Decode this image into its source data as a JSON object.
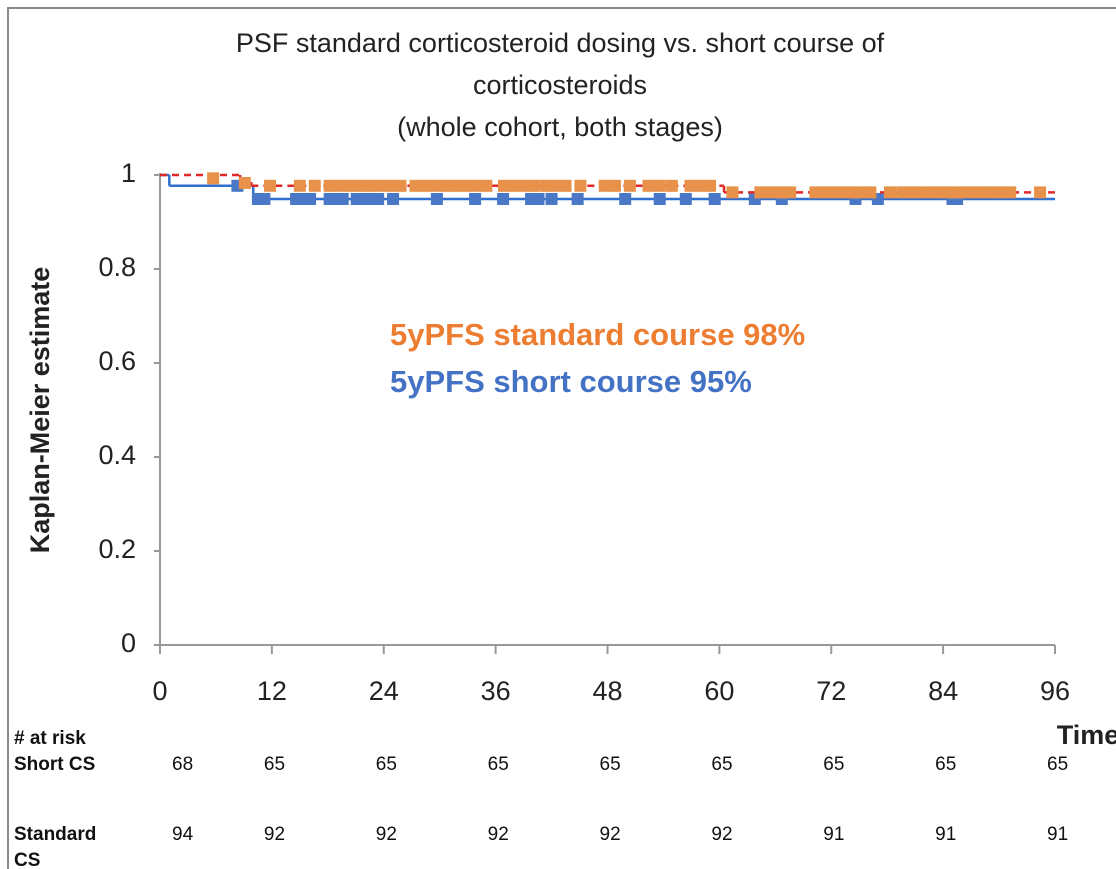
{
  "chart_data": {
    "type": "kaplan-meier",
    "title": [
      "PSF standard corticosteroid dosing vs. short course of",
      "corticosteroids",
      "(whole cohort, both stages)"
    ],
    "y_label": "Kaplan-Meier estimate",
    "x_label": "Time",
    "xlim": [
      0,
      96
    ],
    "xticks": [
      0,
      12,
      24,
      36,
      48,
      60,
      72,
      84,
      96
    ],
    "ylim": [
      0,
      1
    ],
    "yticks": [
      0,
      0.2,
      0.4,
      0.6,
      0.8,
      1
    ],
    "series": [
      {
        "name": "Short CS",
        "color": "#4a78c6",
        "line_color": "#2f6fd0",
        "line_style": "solid",
        "x": [
          0,
          1,
          10,
          96
        ],
        "values": [
          1,
          0.977,
          0.949,
          0.949
        ],
        "censored_x": [
          8.3,
          10.5,
          11.2,
          14.6,
          15.3,
          16.1,
          18.2,
          19.0,
          19.6,
          21.1,
          21.9,
          22.6,
          23.4,
          25.0,
          29.7,
          33.8,
          36.8,
          39.8,
          40.6,
          42.0,
          44.8,
          49.9,
          53.6,
          56.4,
          59.5,
          63.8,
          66.7,
          74.6,
          77.0,
          85.0,
          85.5
        ],
        "censored_values": [
          0.977,
          0.949,
          0.949,
          0.949,
          0.949,
          0.949,
          0.949,
          0.949,
          0.949,
          0.949,
          0.949,
          0.949,
          0.949,
          0.949,
          0.949,
          0.949,
          0.949,
          0.949,
          0.949,
          0.949,
          0.949,
          0.949,
          0.949,
          0.949,
          0.949,
          0.949,
          0.949,
          0.949,
          0.949,
          0.949,
          0.949
        ],
        "at_risk": [
          68,
          65,
          65,
          65,
          65,
          65,
          65,
          65,
          65
        ]
      },
      {
        "name": "Standard CS",
        "color": "#e8914a",
        "line_color": "#e02828",
        "line_style": "dashed",
        "x": [
          0,
          8.6,
          9.8,
          60.5,
          96
        ],
        "values": [
          1,
          0.985,
          0.977,
          0.963,
          0.963
        ],
        "censored_x": [
          5.7,
          9.1,
          11.8,
          15.0,
          16.6,
          18.2,
          19.3,
          20.4,
          21.5,
          22.5,
          23.6,
          24.7,
          25.8,
          27.4,
          28.5,
          29.6,
          30.7,
          31.7,
          32.8,
          33.9,
          35.0,
          36.9,
          38.0,
          39.1,
          40.1,
          41.4,
          42.4,
          43.5,
          45.1,
          47.7,
          48.8,
          50.4,
          52.4,
          53.6,
          54.9,
          56.9,
          58.0,
          59.0,
          61.4,
          64.4,
          65.5,
          66.5,
          67.6,
          70.3,
          71.5,
          72.7,
          73.9,
          75.1,
          76.2,
          78.3,
          79.6,
          80.8,
          82.0,
          83.2,
          84.2,
          85.4,
          86.6,
          87.8,
          89.0,
          90.2,
          91.2,
          94.4
        ],
        "censored_values": [
          0.993,
          0.983,
          0.977,
          0.977,
          0.977,
          0.977,
          0.977,
          0.977,
          0.977,
          0.977,
          0.977,
          0.977,
          0.977,
          0.977,
          0.977,
          0.977,
          0.977,
          0.977,
          0.977,
          0.977,
          0.977,
          0.977,
          0.977,
          0.977,
          0.977,
          0.977,
          0.977,
          0.977,
          0.977,
          0.977,
          0.977,
          0.977,
          0.977,
          0.977,
          0.977,
          0.977,
          0.977,
          0.977,
          0.963,
          0.963,
          0.963,
          0.963,
          0.963,
          0.963,
          0.963,
          0.963,
          0.963,
          0.963,
          0.963,
          0.963,
          0.963,
          0.963,
          0.963,
          0.963,
          0.963,
          0.963,
          0.963,
          0.963,
          0.963,
          0.963,
          0.963,
          0.963
        ],
        "at_risk": [
          94,
          92,
          92,
          92,
          92,
          92,
          91,
          91,
          91
        ]
      }
    ],
    "annotations": [
      {
        "text": "5yPFS standard course 98%",
        "color": "#ed7d31"
      },
      {
        "text": "5yPFS short course 95%",
        "color": "#4472c4"
      }
    ],
    "risk_table_title": "# at risk"
  }
}
